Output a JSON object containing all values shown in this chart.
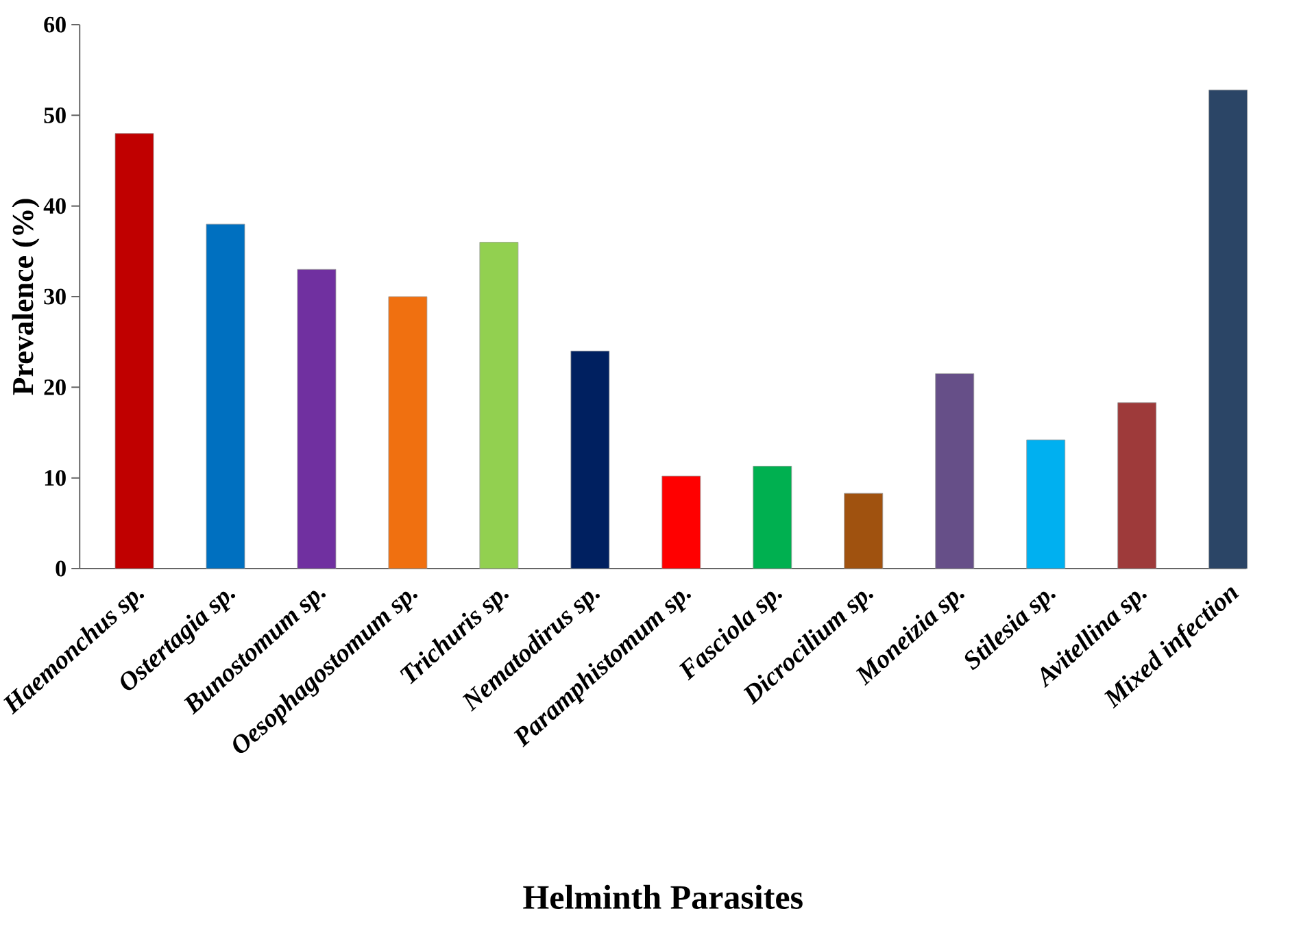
{
  "chart_data": {
    "type": "bar",
    "xlabel": "Helminth Parasites",
    "ylabel": "Prevalence (%)",
    "categories": [
      "Haemonchus sp.",
      "Ostertagia sp.",
      "Bunostomum sp.",
      "Oesophagostomum sp.",
      "Trichuris sp.",
      "Nematodirus sp.",
      "Paramphistomum sp.",
      "Fasciola sp.",
      "Dicrocilium sp.",
      "Moneizia sp.",
      "Stilesia sp.",
      "Avitellina sp.",
      "Mixed infection"
    ],
    "values": [
      48,
      38,
      33,
      30,
      36,
      24,
      10.2,
      11.3,
      8.3,
      21.5,
      14.2,
      18.3,
      52.8
    ],
    "colors": [
      "#c00000",
      "#0070c0",
      "#7030a0",
      "#f07010",
      "#92d050",
      "#002060",
      "#ff0000",
      "#00b050",
      "#a0520f",
      "#664f88",
      "#00b0f0",
      "#9e3a3a",
      "#2b4566"
    ],
    "ylim": [
      0,
      60
    ],
    "yticks": [
      0,
      10,
      20,
      30,
      40,
      50,
      60
    ],
    "grid": false
  }
}
